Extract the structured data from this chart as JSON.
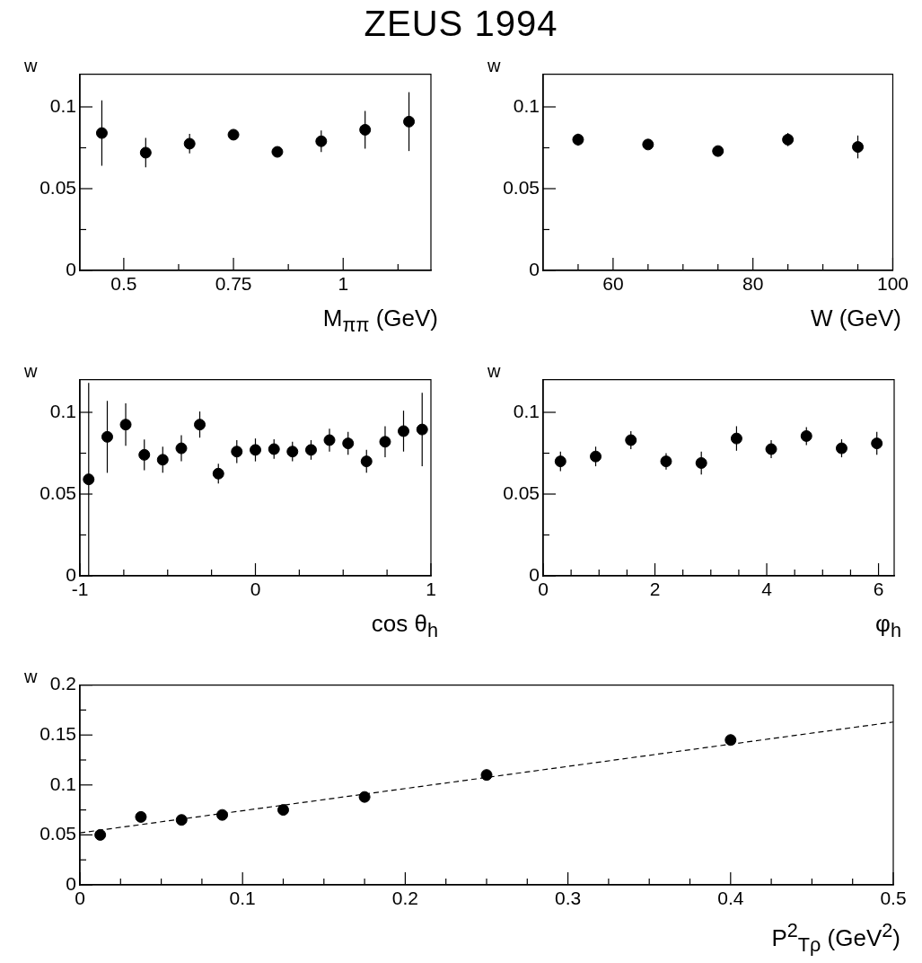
{
  "chart_data": [
    {
      "type": "scatter",
      "title": "ZEUS 1994",
      "xlabel": "M$_{ππ}$ (GeV)",
      "ylabel": "w",
      "xlim": [
        0.4,
        1.2
      ],
      "ylim": [
        0,
        0.12
      ],
      "xticks": [
        0.5,
        {
          "value": 0.625,
          "label": null
        },
        0.75,
        {
          "value": 0.875,
          "label": null
        },
        1,
        {
          "value": 1.125,
          "label": null
        }
      ],
      "yticks": [
        0,
        {
          "value": 0.025,
          "label": null
        },
        0.05,
        {
          "value": 0.075,
          "label": null
        },
        0.1
      ],
      "marker": "circle",
      "series": [
        {
          "color": "#000000",
          "x": [
            0.45,
            0.55,
            0.65,
            0.75,
            0.85,
            0.95,
            1.05,
            1.15
          ],
          "values": [
            0.084,
            0.072,
            0.0775,
            0.083,
            0.0725,
            0.079,
            0.086,
            0.091
          ],
          "errors": [
            0.02,
            0.009,
            0.006,
            0.002,
            0.002,
            0.0066,
            0.0115,
            0.018
          ]
        }
      ]
    },
    {
      "type": "scatter",
      "xlabel": "W (GeV)",
      "ylabel": "w",
      "xlim": [
        50,
        100
      ],
      "ylim": [
        0,
        0.12
      ],
      "xticks": [
        {
          "value": 55,
          "label": null
        },
        60,
        {
          "value": 65,
          "label": null
        },
        {
          "value": 70,
          "label": null
        },
        {
          "value": 75,
          "label": null
        },
        80,
        {
          "value": 85,
          "label": null
        },
        {
          "value": 90,
          "label": null
        },
        {
          "value": 95,
          "label": null
        },
        100
      ],
      "yticks": [
        0,
        {
          "value": 0.025,
          "label": null
        },
        0.05,
        {
          "value": 0.075,
          "label": null
        },
        0.1
      ],
      "marker": "circle",
      "series": [
        {
          "color": "#000000",
          "x": [
            55,
            65,
            75,
            85,
            95
          ],
          "values": [
            0.08,
            0.077,
            0.073,
            0.08,
            0.0755
          ],
          "errors": [
            0.0037,
            0.002,
            0.002,
            0.004,
            0.007
          ]
        }
      ]
    },
    {
      "type": "scatter",
      "xlabel": "cos θ$_{h}$",
      "ylabel": "w",
      "xlim": [
        -1,
        1
      ],
      "ylim": [
        0,
        0.12
      ],
      "xticks": [
        -1,
        {
          "value": -0.75,
          "label": null
        },
        {
          "value": -0.5,
          "label": null
        },
        {
          "value": -0.25,
          "label": null
        },
        0,
        {
          "value": 0.25,
          "label": null
        },
        {
          "value": 0.5,
          "label": null
        },
        {
          "value": 0.75,
          "label": null
        },
        1
      ],
      "yticks": [
        0,
        {
          "value": 0.025,
          "label": null
        },
        0.05,
        {
          "value": 0.075,
          "label": null
        },
        0.1
      ],
      "marker": "circle",
      "series": [
        {
          "color": "#000000",
          "x": [
            -0.95,
            -0.844,
            -0.739,
            -0.633,
            -0.528,
            -0.422,
            -0.317,
            -0.211,
            -0.106,
            0,
            0.106,
            0.211,
            0.317,
            0.422,
            0.528,
            0.633,
            0.739,
            0.844,
            0.95
          ],
          "values": [
            0.059,
            0.085,
            0.0925,
            0.074,
            0.071,
            0.078,
            0.0925,
            0.0625,
            0.076,
            0.077,
            0.0775,
            0.076,
            0.077,
            0.083,
            0.081,
            0.07,
            0.082,
            0.0885,
            0.0895
          ],
          "errors": [
            0.059,
            0.022,
            0.013,
            0.0094,
            0.008,
            0.008,
            0.008,
            0.006,
            0.007,
            0.007,
            0.006,
            0.006,
            0.006,
            0.007,
            0.007,
            0.007,
            0.0095,
            0.0125,
            0.0225
          ]
        }
      ]
    },
    {
      "type": "scatter",
      "xlabel": "φ$_{h}$",
      "ylabel": "w",
      "xlim": [
        0,
        6.28
      ],
      "ylim": [
        0,
        0.12
      ],
      "xticks": [
        0,
        {
          "value": 0.5,
          "label": null
        },
        {
          "value": 1,
          "label": null
        },
        {
          "value": 1.5,
          "label": null
        },
        2,
        {
          "value": 2.5,
          "label": null
        },
        {
          "value": 3,
          "label": null
        },
        {
          "value": 3.5,
          "label": null
        },
        4,
        {
          "value": 4.5,
          "label": null
        },
        {
          "value": 5,
          "label": null
        },
        {
          "value": 5.5,
          "label": null
        },
        6
      ],
      "yticks": [
        0,
        {
          "value": 0.025,
          "label": null
        },
        0.05,
        {
          "value": 0.075,
          "label": null
        },
        0.1
      ],
      "marker": "circle",
      "series": [
        {
          "color": "#000000",
          "x": [
            0.31,
            0.94,
            1.57,
            2.2,
            2.83,
            3.46,
            4.08,
            4.71,
            5.34,
            5.97
          ],
          "values": [
            0.07,
            0.073,
            0.083,
            0.07,
            0.069,
            0.084,
            0.0775,
            0.0855,
            0.078,
            0.081
          ],
          "errors": [
            0.006,
            0.006,
            0.0055,
            0.005,
            0.007,
            0.0075,
            0.0055,
            0.0055,
            0.0055,
            0.007
          ]
        }
      ]
    },
    {
      "type": "scatter",
      "xlabel": "P$^{2}$$_{Tρ}$ (GeV$^{2}$)",
      "ylabel": "w",
      "xlim": [
        0,
        0.5
      ],
      "ylim": [
        0,
        0.2
      ],
      "xticks": [
        0,
        {
          "value": 0.025,
          "label": null
        },
        {
          "value": 0.05,
          "label": null
        },
        {
          "value": 0.075,
          "label": null
        },
        0.1,
        {
          "value": 0.125,
          "label": null
        },
        {
          "value": 0.15,
          "label": null
        },
        {
          "value": 0.175,
          "label": null
        },
        0.2,
        {
          "value": 0.225,
          "label": null
        },
        {
          "value": 0.25,
          "label": null
        },
        {
          "value": 0.275,
          "label": null
        },
        0.3,
        {
          "value": 0.325,
          "label": null
        },
        {
          "value": 0.35,
          "label": null
        },
        {
          "value": 0.375,
          "label": null
        },
        0.4,
        {
          "value": 0.425,
          "label": null
        },
        {
          "value": 0.45,
          "label": null
        },
        {
          "value": 0.475,
          "label": null
        },
        0.5
      ],
      "yticks": [
        0,
        {
          "value": 0.025,
          "label": null
        },
        0.05,
        {
          "value": 0.075,
          "label": null
        },
        0.1,
        {
          "value": 0.125,
          "label": null
        },
        0.15,
        {
          "value": 0.175,
          "label": null
        },
        0.2
      ],
      "marker": "circle",
      "series": [
        {
          "color": "#000000",
          "x": [
            0.0125,
            0.0375,
            0.0625,
            0.0875,
            0.125,
            0.175,
            0.25,
            0.4
          ],
          "values": [
            0.05,
            0.068,
            0.065,
            0.07,
            0.075,
            0.088,
            0.11,
            0.145
          ],
          "errors": [
            0.002,
            0.002,
            0.002,
            0.003,
            0.002,
            0.004,
            0.005,
            0.0055
          ]
        },
        {
          "type": "line",
          "color": "#000000",
          "line_style": "dashed",
          "marker": "none",
          "x": [
            0,
            0.5
          ],
          "values": [
            0.052,
            0.163
          ]
        }
      ]
    }
  ]
}
